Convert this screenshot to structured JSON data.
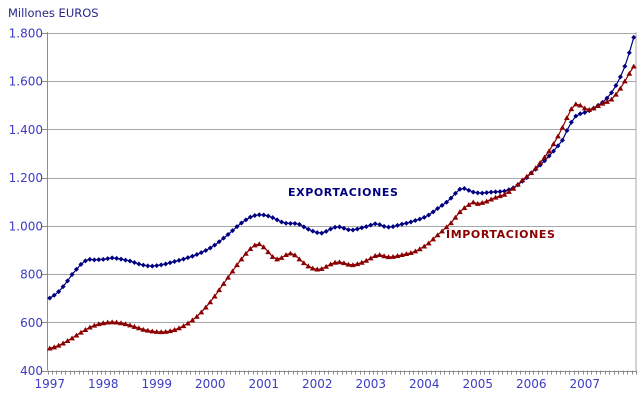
{
  "title": "Millones EUROS",
  "series_labels": {
    "exports": "EXPORTACIONES",
    "imports": "IMPORTACIONES"
  },
  "colors": {
    "exports": "#000080",
    "imports": "#8B0000",
    "grid": "#A8A8A8",
    "axis": "#8C8C8C",
    "tick_labels": "#3C3CC4",
    "title": "#26268C",
    "background": "#FFFFFF"
  },
  "y_axis": {
    "tick_labels": [
      "1.800",
      "1.600",
      "1.400",
      "1.200",
      "1.000",
      "800",
      "600",
      "400"
    ],
    "tick_values": [
      1800,
      1600,
      1400,
      1200,
      1000,
      800,
      600,
      400
    ]
  },
  "x_axis": {
    "year_labels": [
      "1997",
      "1998",
      "1999",
      "2000",
      "2001",
      "2002",
      "2003",
      "2004",
      "2005",
      "2006",
      "2007"
    ],
    "minor_tick_unit": "month"
  },
  "chart_data": {
    "type": "line",
    "title": "Millones EUROS",
    "x_start": "1997-01",
    "x_frequency": "monthly",
    "x_points": 132,
    "ylim": [
      400,
      1800
    ],
    "y_gridline_step": 200,
    "grid": "horizontal-only",
    "legend_position": "inline-annotations",
    "series": [
      {
        "name": "EXPORTACIONES",
        "color": "#000080",
        "marker": "diamond",
        "values": [
          700,
          712,
          727,
          748,
          772,
          798,
          820,
          840,
          855,
          861,
          859,
          860,
          861,
          864,
          867,
          865,
          862,
          858,
          854,
          848,
          842,
          837,
          834,
          833,
          835,
          838,
          842,
          847,
          852,
          857,
          862,
          868,
          874,
          881,
          889,
          898,
          908,
          920,
          934,
          949,
          964,
          980,
          997,
          1012,
          1025,
          1036,
          1043,
          1046,
          1045,
          1041,
          1034,
          1025,
          1016,
          1011,
          1010,
          1010,
          1006,
          996,
          986,
          978,
          972,
          970,
          977,
          987,
          994,
          996,
          990,
          984,
          983,
          987,
          992,
          997,
          1003,
          1009,
          1005,
          998,
          995,
          997,
          1002,
          1007,
          1011,
          1016,
          1022,
          1028,
          1035,
          1045,
          1058,
          1072,
          1085,
          1098,
          1115,
          1135,
          1152,
          1155,
          1147,
          1140,
          1137,
          1136,
          1138,
          1140,
          1141,
          1142,
          1144,
          1150,
          1158,
          1170,
          1185,
          1200,
          1220,
          1235,
          1252,
          1270,
          1290,
          1310,
          1332,
          1355,
          1395,
          1430,
          1455,
          1465,
          1470,
          1478,
          1488,
          1500,
          1512,
          1530,
          1552,
          1582,
          1618,
          1662,
          1718,
          1782
        ]
      },
      {
        "name": "IMPORTACIONES",
        "color": "#8B0000",
        "marker": "triangle",
        "values": [
          492,
          497,
          504,
          513,
          523,
          534,
          546,
          558,
          569,
          579,
          587,
          593,
          597,
          600,
          601,
          600,
          597,
          593,
          588,
          582,
          576,
          570,
          566,
          563,
          561,
          560,
          561,
          564,
          569,
          576,
          585,
          596,
          609,
          624,
          642,
          662,
          684,
          708,
          734,
          760,
          786,
          812,
          838,
          862,
          885,
          905,
          920,
          925,
          912,
          892,
          872,
          862,
          868,
          880,
          886,
          879,
          862,
          846,
          833,
          824,
          820,
          822,
          831,
          841,
          848,
          850,
          846,
          840,
          838,
          842,
          848,
          856,
          866,
          876,
          880,
          875,
          871,
          872,
          876,
          880,
          884,
          888,
          895,
          904,
          915,
          928,
          945,
          962,
          978,
          995,
          1012,
          1035,
          1058,
          1075,
          1088,
          1098,
          1092,
          1096,
          1102,
          1110,
          1118,
          1124,
          1130,
          1142,
          1155,
          1172,
          1190,
          1205,
          1220,
          1240,
          1262,
          1285,
          1310,
          1340,
          1372,
          1408,
          1448,
          1485,
          1505,
          1500,
          1488,
          1482,
          1488,
          1498,
          1508,
          1515,
          1525,
          1545,
          1570,
          1600,
          1632,
          1662
        ]
      }
    ]
  }
}
